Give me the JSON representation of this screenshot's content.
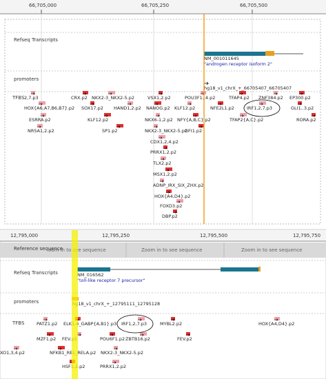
{
  "top": {
    "ruler": [
      "66,705,000",
      "66,705,250",
      "66,705,500"
    ],
    "tracks": [
      "Refseq Transcripts",
      "promoters",
      "TFBS"
    ],
    "transcript": {
      "id": "NM_001011645",
      "name": "\"androgen receptor isoform 2\""
    },
    "promoter": "hg18_v1_chrX_+_66705407_66705407",
    "tfbs": [
      "2,7.p3",
      "CRX.p2",
      "NKX2-3_NKX2-5.p2",
      "VSX1,2.p2",
      "POU3F1..4.p2",
      "TFAP4.p2",
      "ZNF384.p2",
      "EP300.p2",
      "HOX{A6,A7,B6,B7}.p2",
      "SOX17.p2",
      "HAND1,2.p2",
      "NANOG.p2",
      "KLF12.p2",
      "NFE2L1.p2",
      "IRF1,2,7.p3",
      "GLI1..3.p2",
      "ESRRA.p2",
      "KLF12.p2",
      "NKX6-1,2.p2",
      "NFY{A,B,C}.p2",
      "TFAP2{A,C}.p2",
      "RORA.p2",
      "NR5A1,2.p2",
      "SP1.p2",
      "NKX2-3_NKX2-5.p2",
      "GFI1.p2",
      "CDX1,2,4.p2",
      "PRRX1,2.p2",
      "TLX2.p2",
      "MSX1,2.p2",
      "ADNP_IRX_SIX_ZHX.p2",
      "HOX{A4,D4}.p2",
      "FOXD3.p2",
      "DBP.p2"
    ]
  },
  "bottom": {
    "ruler": [
      "12,795,000",
      "12,795,250",
      "12,795,500",
      "12,795,750"
    ],
    "tracks": [
      "Reference sequence",
      "Refseq Transcripts",
      "promoters",
      "TFBS"
    ],
    "sequence_notes": [
      "oom in to see sequence",
      "Zoom in to see sequence",
      "Zoom in to see sequence"
    ],
    "transcript": {
      "id": "NM_016562",
      "name": "\"toll-like receptor 7 precursor\""
    },
    "promoter": "hg18_v1_chrX_+_12795111_12795128",
    "tfbs": [
      "PATZ1.p2",
      "ELK1,4_GABP{A,B1}.p3",
      "IRF1,2,7.p3",
      "MYBL2.p2",
      "HOX{A4,D4}.p2",
      "MZF1.p2",
      "FEV.p2",
      "POU6F1.p2",
      "ZBTB16.p2",
      "FEV.p2",
      "XO1,3,4.p2",
      "NFKB1_REL_RELA.p2",
      "NKX2-3_NKX2-5.p2",
      "HSF1,2.p2",
      "PRRX1,2.p2"
    ]
  }
}
